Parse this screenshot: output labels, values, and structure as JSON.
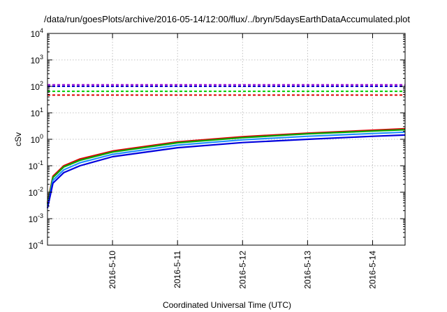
{
  "chart_data": {
    "type": "line",
    "title": "/data/run/goesPlots/archive/2016-05-14/12:00/flux/../bryn/5daysEarthDataAccumulated.plot",
    "xlabel": "Coordinated Universal Time (UTC)",
    "ylabel": "cSv",
    "yscale": "log",
    "ylim": [
      0.0001,
      10000
    ],
    "xlim": [
      "2016-05-09T00:00",
      "2016-05-14T12:00"
    ],
    "grid": true,
    "y_ticks": [
      {
        "value": 0.0001,
        "base": "10",
        "exp": "-4"
      },
      {
        "value": 0.001,
        "base": "10",
        "exp": "-3"
      },
      {
        "value": 0.01,
        "base": "10",
        "exp": "-2"
      },
      {
        "value": 0.1,
        "base": "10",
        "exp": "-1"
      },
      {
        "value": 1,
        "base": "10",
        "exp": "0"
      },
      {
        "value": 10,
        "base": "10",
        "exp": "1"
      },
      {
        "value": 100,
        "base": "10",
        "exp": "2"
      },
      {
        "value": 1000,
        "base": "10",
        "exp": "3"
      },
      {
        "value": 10000,
        "base": "10",
        "exp": "4"
      }
    ],
    "x_ticks": [
      {
        "value": "2016-05-10T00:00",
        "label": "2016-5-10"
      },
      {
        "value": "2016-05-11T00:00",
        "label": "2016-5-11"
      },
      {
        "value": "2016-05-12T00:00",
        "label": "2016-5-12"
      },
      {
        "value": "2016-05-13T00:00",
        "label": "2016-5-13"
      },
      {
        "value": "2016-05-14T00:00",
        "label": "2016-5-14"
      }
    ],
    "thresholds": [
      {
        "color": "#9400d3",
        "value": 115
      },
      {
        "color": "#0000cc",
        "value": 100
      },
      {
        "color": "#00cc00",
        "value": 65
      },
      {
        "color": "#dd0000",
        "value": 47
      }
    ],
    "series": [
      {
        "color": "#dd0000",
        "x": [
          "2016-05-09T00:00",
          "2016-05-09T02:00",
          "2016-05-09T06:00",
          "2016-05-09T12:00",
          "2016-05-10T00:00",
          "2016-05-11T00:00",
          "2016-05-12T00:00",
          "2016-05-13T00:00",
          "2016-05-14T00:00",
          "2016-05-14T12:00"
        ],
        "y": [
          0.004,
          0.04,
          0.1,
          0.18,
          0.36,
          0.8,
          1.25,
          1.7,
          2.2,
          2.5
        ]
      },
      {
        "color": "#00aa00",
        "x": [
          "2016-05-09T00:00",
          "2016-05-09T02:00",
          "2016-05-09T06:00",
          "2016-05-09T12:00",
          "2016-05-10T00:00",
          "2016-05-11T00:00",
          "2016-05-12T00:00",
          "2016-05-13T00:00",
          "2016-05-14T00:00",
          "2016-05-14T12:00"
        ],
        "y": [
          0.0035,
          0.036,
          0.09,
          0.16,
          0.33,
          0.74,
          1.15,
          1.6,
          2.05,
          2.3
        ]
      },
      {
        "color": "#2090ff",
        "x": [
          "2016-05-09T00:00",
          "2016-05-09T02:00",
          "2016-05-09T06:00",
          "2016-05-09T12:00",
          "2016-05-10T00:00",
          "2016-05-11T00:00",
          "2016-05-12T00:00",
          "2016-05-13T00:00",
          "2016-05-14T00:00",
          "2016-05-14T12:00"
        ],
        "y": [
          0.003,
          0.028,
          0.07,
          0.13,
          0.27,
          0.6,
          0.95,
          1.3,
          1.65,
          1.85
        ]
      },
      {
        "color": "#0000dd",
        "x": [
          "2016-05-09T00:00",
          "2016-05-09T02:00",
          "2016-05-09T06:00",
          "2016-05-09T12:00",
          "2016-05-10T00:00",
          "2016-05-11T00:00",
          "2016-05-12T00:00",
          "2016-05-13T00:00",
          "2016-05-14T00:00",
          "2016-05-14T12:00"
        ],
        "y": [
          0.0025,
          0.022,
          0.055,
          0.1,
          0.22,
          0.48,
          0.75,
          1.0,
          1.3,
          1.45
        ]
      }
    ]
  }
}
